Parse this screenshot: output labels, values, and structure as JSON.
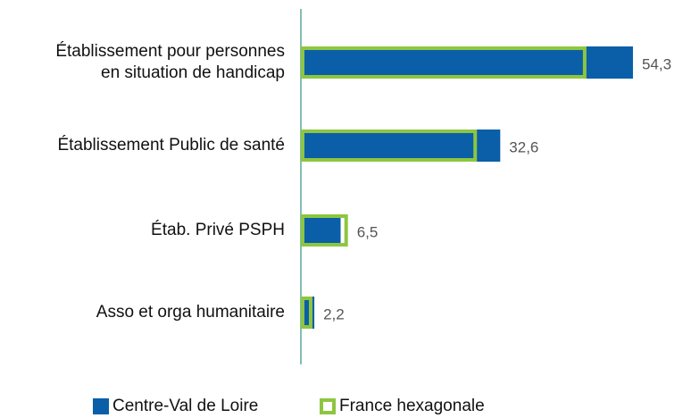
{
  "chart_data": {
    "type": "bar",
    "orientation": "horizontal",
    "categories": [
      "Établissement pour personnes\nen situation de handicap",
      "Établissement Public de santé",
      "Étab. Privé PSPH",
      "Asso et orga humanitaire"
    ],
    "series": [
      {
        "name": "Centre-Val de Loire",
        "color": "#0a5fa8",
        "values": [
          54.3,
          32.6,
          6.5,
          2.2
        ],
        "value_labels": [
          "54,3",
          "32,6",
          "6,5",
          "2,2"
        ]
      },
      {
        "name": "France hexagonale",
        "color": "#8dc63f",
        "values": [
          46.4,
          28.5,
          7.4,
          1.6
        ]
      }
    ]
  }
}
